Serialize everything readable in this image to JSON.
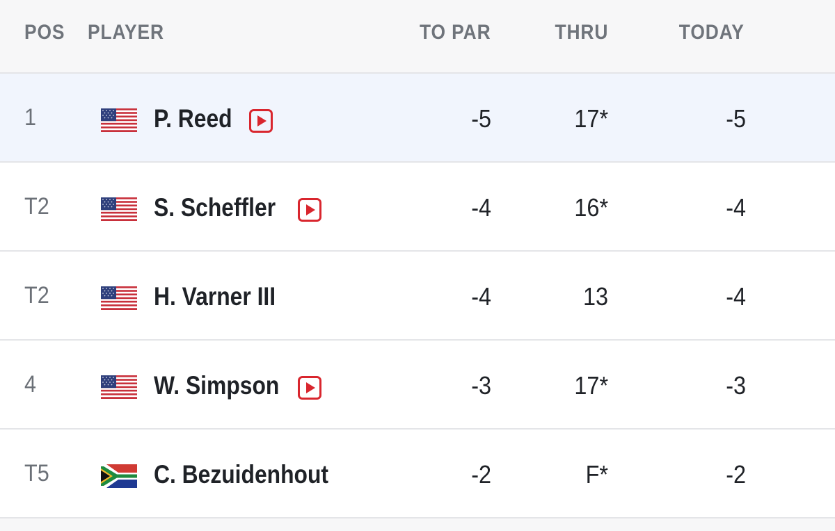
{
  "header": {
    "pos": "POS",
    "player": "PLAYER",
    "to_par": "TO PAR",
    "thru": "THRU",
    "today": "TODAY"
  },
  "rows": [
    {
      "pos": "1",
      "player": "P. Reed",
      "country_flag": "usa-flag-icon",
      "video": true,
      "to_par": "-5",
      "thru": "17*",
      "today": "-5",
      "highlight": true
    },
    {
      "pos": "T2",
      "player": "S. Scheffler",
      "country_flag": "usa-flag-icon",
      "video": true,
      "to_par": "-4",
      "thru": "16*",
      "today": "-4",
      "highlight": false
    },
    {
      "pos": "T2",
      "player": "H. Varner III",
      "country_flag": "usa-flag-icon",
      "video": false,
      "to_par": "-4",
      "thru": "13",
      "today": "-4",
      "highlight": false
    },
    {
      "pos": "4",
      "player": "W. Simpson",
      "country_flag": "usa-flag-icon",
      "video": true,
      "to_par": "-3",
      "thru": "17*",
      "today": "-3",
      "highlight": false
    },
    {
      "pos": "T5",
      "player": "C. Bezuidenhout",
      "country_flag": "south-africa-flag-icon",
      "video": false,
      "to_par": "-2",
      "thru": "F*",
      "today": "-2",
      "highlight": false
    }
  ],
  "colors": {
    "highlight_row": "#f1f5fd",
    "video_icon": "#d9262e",
    "header_text": "#6f747b"
  }
}
